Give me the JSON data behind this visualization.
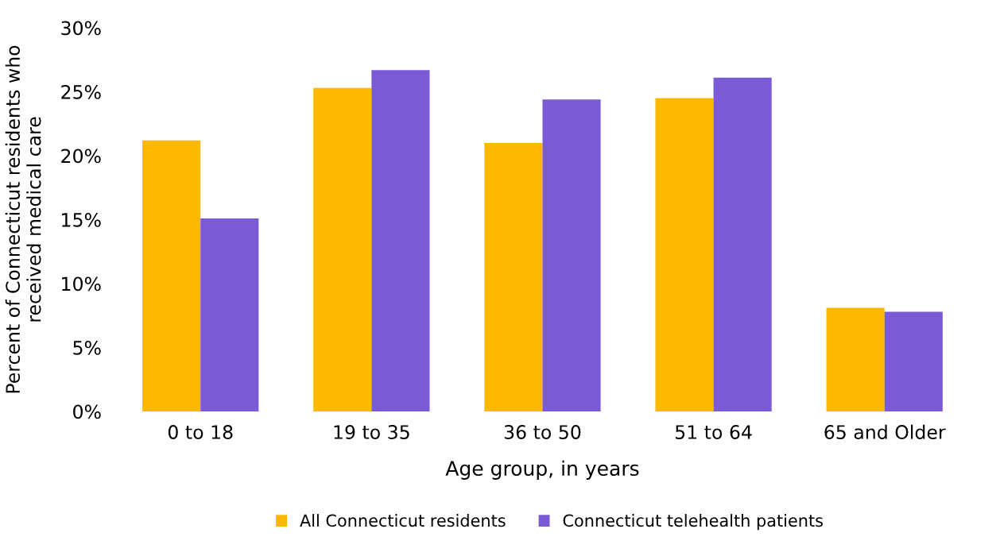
{
  "chart_data": {
    "type": "bar",
    "xlabel": "Age group, in years",
    "ylabel": "Percent of Connecticut residents who\nreceived medical care",
    "categories": [
      "0 to 18",
      "19 to 35",
      "36 to 50",
      "51 to 64",
      "65 and Older"
    ],
    "series": [
      {
        "name": "All Connecticut residents",
        "color": "#fcb900",
        "values": [
          21.2,
          25.3,
          21.0,
          24.5,
          8.1
        ]
      },
      {
        "name": "Connecticut telehealth patients",
        "color": "#7b5ad6",
        "values": [
          15.1,
          26.7,
          24.4,
          26.1,
          7.8
        ]
      }
    ],
    "ylim": [
      0,
      30
    ],
    "yticks": [
      {
        "value": 0,
        "label": "0%"
      },
      {
        "value": 5,
        "label": "5%"
      },
      {
        "value": 10,
        "label": "10%"
      },
      {
        "value": 15,
        "label": "15%"
      },
      {
        "value": 20,
        "label": "20%"
      },
      {
        "value": 25,
        "label": "25%"
      },
      {
        "value": 30,
        "label": "30%"
      }
    ],
    "legend": "bottom"
  }
}
